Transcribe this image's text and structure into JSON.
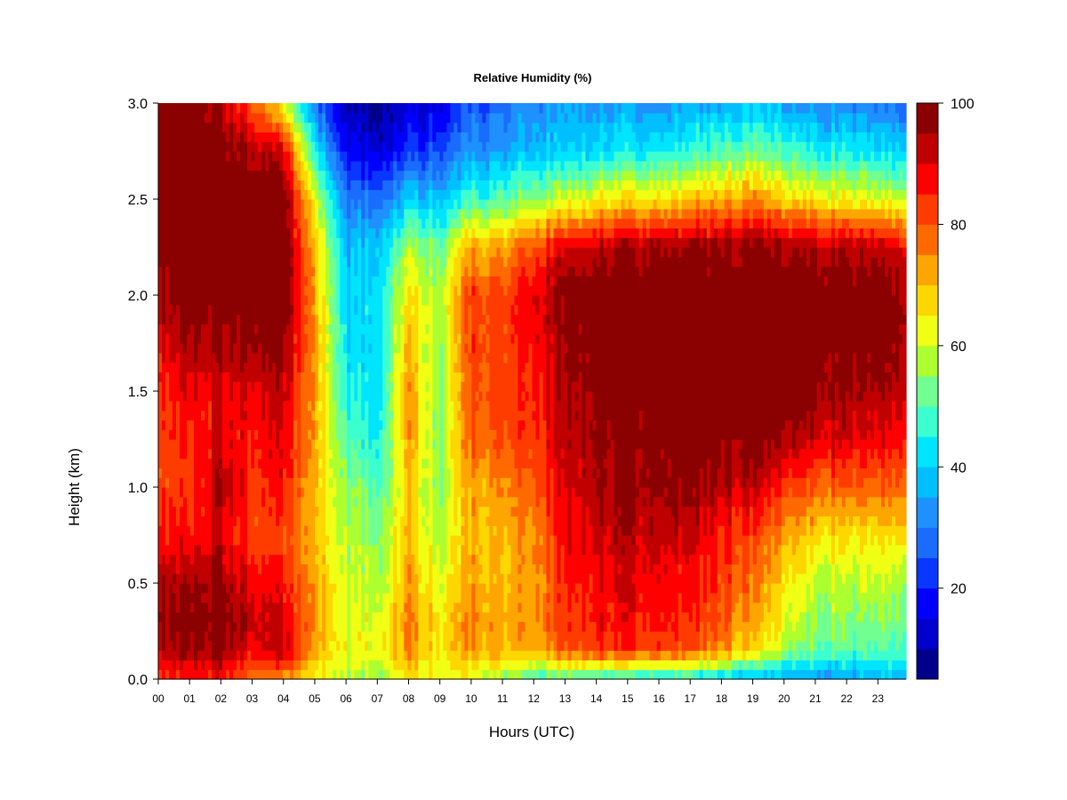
{
  "chart_data": {
    "type": "heatmap",
    "title": "Relative Humidity (%)",
    "xlabel": "Hours (UTC)",
    "ylabel": "Height (km)",
    "x_ticks": [
      "00",
      "01",
      "02",
      "03",
      "04",
      "05",
      "06",
      "07",
      "08",
      "09",
      "10",
      "11",
      "12",
      "13",
      "14",
      "15",
      "16",
      "17",
      "18",
      "19",
      "20",
      "21",
      "22",
      "23"
    ],
    "y_ticks": [
      "0.0",
      "0.5",
      "1.0",
      "1.5",
      "2.0",
      "2.5",
      "3.0"
    ],
    "xlim": [
      0,
      23.9
    ],
    "ylim": [
      0,
      3.0
    ],
    "colorbar": {
      "ticks": [
        "20",
        "40",
        "60",
        "80",
        "100"
      ],
      "tick_values": [
        20,
        40,
        60,
        80,
        100
      ],
      "range": [
        5,
        100
      ],
      "levels": [
        5,
        10,
        15,
        20,
        25,
        30,
        35,
        40,
        45,
        50,
        55,
        60,
        65,
        70,
        75,
        80,
        85,
        90,
        95,
        100
      ],
      "colors": [
        "#00008b",
        "#0000cd",
        "#0000ff",
        "#0a37ff",
        "#1a6cff",
        "#1e90ff",
        "#00bfff",
        "#00e5ff",
        "#3cffd0",
        "#70ff90",
        "#adff2f",
        "#f0ff14",
        "#ffd700",
        "#ffa500",
        "#ff6a00",
        "#ff3c00",
        "#ff0000",
        "#c00000",
        "#8b0000"
      ]
    },
    "y_levels_km": [
      0.0,
      0.15,
      0.3,
      0.5,
      0.75,
      1.0,
      1.25,
      1.5,
      1.75,
      2.0,
      2.25,
      2.5,
      2.75,
      3.0
    ],
    "hours": [
      0,
      1,
      2,
      3,
      4,
      5,
      6,
      7,
      8,
      9,
      10,
      11,
      12,
      13,
      14,
      15,
      16,
      17,
      18,
      19,
      20,
      21,
      22,
      23,
      23.9
    ],
    "rh": [
      [
        85,
        95,
        98,
        96,
        88,
        84,
        84,
        86,
        90,
        96,
        100,
        100,
        100,
        100
      ],
      [
        84,
        94,
        97,
        94,
        86,
        82,
        84,
        88,
        94,
        99,
        100,
        100,
        100,
        97
      ],
      [
        86,
        99,
        100,
        98,
        90,
        96,
        90,
        90,
        96,
        100,
        100,
        100,
        100,
        95
      ],
      [
        75,
        88,
        93,
        88,
        82,
        84,
        86,
        90,
        97,
        100,
        100,
        100,
        95,
        80
      ],
      [
        72,
        92,
        90,
        86,
        80,
        86,
        88,
        92,
        97,
        100,
        100,
        99,
        90,
        60
      ],
      [
        64,
        72,
        74,
        72,
        70,
        70,
        72,
        72,
        74,
        72,
        70,
        62,
        45,
        30
      ],
      [
        58,
        62,
        62,
        60,
        58,
        55,
        50,
        45,
        42,
        40,
        38,
        30,
        18,
        10
      ],
      [
        56,
        64,
        62,
        58,
        55,
        50,
        45,
        42,
        42,
        42,
        40,
        28,
        14,
        8
      ],
      [
        66,
        74,
        76,
        72,
        70,
        68,
        72,
        74,
        70,
        65,
        58,
        40,
        22,
        12
      ],
      [
        62,
        66,
        66,
        62,
        58,
        55,
        55,
        54,
        56,
        58,
        52,
        38,
        25,
        15
      ],
      [
        60,
        74,
        74,
        72,
        70,
        72,
        78,
        80,
        82,
        82,
        72,
        48,
        32,
        25
      ],
      [
        55,
        72,
        72,
        70,
        70,
        74,
        80,
        82,
        82,
        82,
        72,
        50,
        34,
        28
      ],
      [
        48,
        72,
        74,
        74,
        76,
        80,
        84,
        86,
        88,
        90,
        82,
        56,
        38,
        32
      ],
      [
        48,
        80,
        84,
        84,
        88,
        90,
        92,
        94,
        96,
        98,
        90,
        60,
        40,
        34
      ],
      [
        46,
        84,
        86,
        88,
        92,
        95,
        97,
        98,
        100,
        100,
        94,
        64,
        42,
        34
      ],
      [
        44,
        84,
        88,
        90,
        94,
        97,
        99,
        100,
        100,
        100,
        96,
        66,
        44,
        34
      ],
      [
        42,
        82,
        86,
        88,
        92,
        96,
        98,
        100,
        100,
        100,
        96,
        66,
        44,
        32
      ],
      [
        42,
        80,
        84,
        86,
        90,
        96,
        98,
        100,
        100,
        100,
        96,
        68,
        46,
        34
      ],
      [
        40,
        74,
        80,
        82,
        86,
        94,
        98,
        100,
        100,
        100,
        96,
        72,
        50,
        36
      ],
      [
        36,
        66,
        72,
        76,
        82,
        92,
        98,
        100,
        100,
        100,
        97,
        74,
        52,
        38
      ],
      [
        34,
        56,
        62,
        66,
        72,
        84,
        94,
        100,
        100,
        100,
        95,
        68,
        48,
        34
      ],
      [
        34,
        52,
        56,
        60,
        68,
        80,
        92,
        98,
        100,
        100,
        94,
        66,
        46,
        32
      ],
      [
        34,
        50,
        54,
        58,
        66,
        78,
        90,
        96,
        98,
        100,
        94,
        64,
        44,
        32
      ],
      [
        36,
        50,
        54,
        58,
        66,
        78,
        88,
        94,
        98,
        98,
        92,
        62,
        42,
        30
      ],
      [
        38,
        50,
        54,
        58,
        68,
        80,
        88,
        94,
        96,
        96,
        90,
        60,
        40,
        28
      ]
    ]
  }
}
